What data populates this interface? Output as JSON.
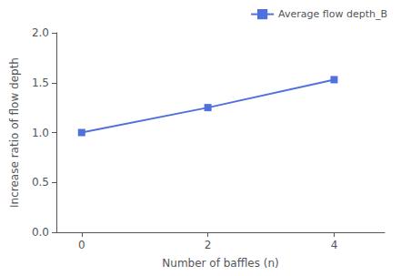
{
  "chart_data": {
    "type": "line",
    "x": [
      0,
      2,
      4
    ],
    "series": [
      {
        "name": "Average flow depth_B",
        "values": [
          1.0,
          1.25,
          1.53
        ],
        "marker": "square"
      }
    ],
    "xlabel": "Number of baffles (n)",
    "ylabel": "Increase ratio of flow depth",
    "xlim": [
      -0.4,
      4.8
    ],
    "ylim": [
      0.0,
      2.0
    ],
    "xticks": [
      0,
      2,
      4
    ],
    "yticks": [
      {
        "value": 0.0,
        "label": "0.0"
      },
      0.5,
      {
        "value": 1.0,
        "label": "1.0"
      },
      1.5,
      {
        "value": 2.0,
        "label": "2.0"
      }
    ],
    "legend": "upper right",
    "grid": false
  }
}
